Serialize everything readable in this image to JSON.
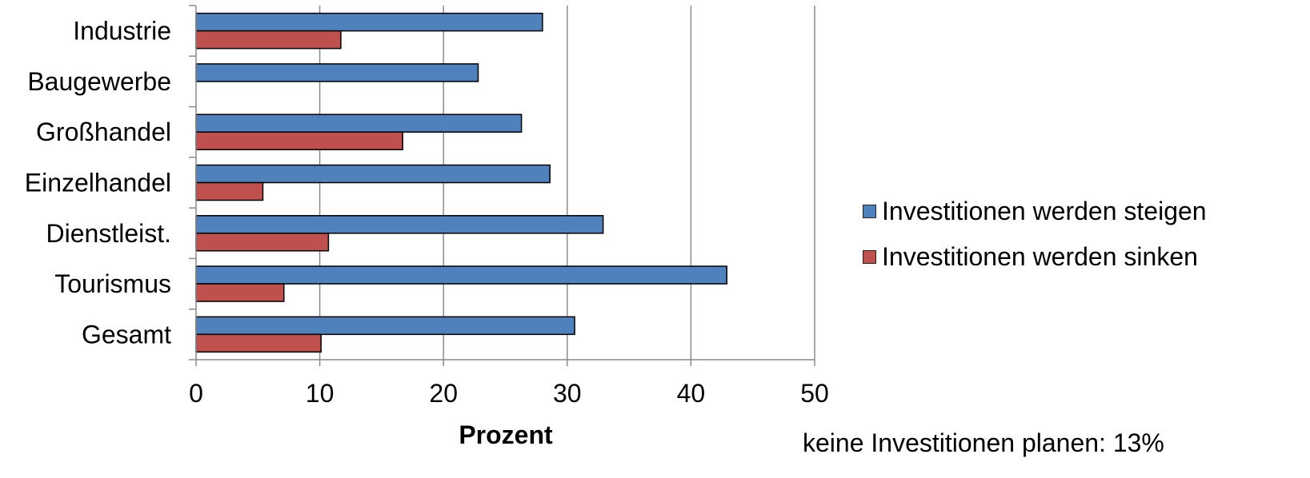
{
  "chart_data": {
    "type": "bar",
    "orientation": "horizontal",
    "categories": [
      "Industrie",
      "Baugewerbe",
      "Großhandel",
      "Einzelhandel",
      "Dienstleist.",
      "Tourismus",
      "Gesamt"
    ],
    "series": [
      {
        "name": "Investitionen werden steigen",
        "color": "#4f81bd",
        "values": [
          28.0,
          22.8,
          26.3,
          28.6,
          32.9,
          42.9,
          30.6
        ]
      },
      {
        "name": "Investitionen werden sinken",
        "color": "#c0504d",
        "values": [
          11.7,
          null,
          16.7,
          5.4,
          10.7,
          7.1,
          10.1
        ]
      }
    ],
    "xlabel": "Prozent",
    "ylabel": "",
    "xlim": [
      0,
      50
    ],
    "x_ticks": [
      "0",
      "10",
      "20",
      "30",
      "40",
      "50"
    ],
    "grid": "vertical",
    "legend_position": "right",
    "annotation": "keine Investitionen planen: 13%"
  }
}
